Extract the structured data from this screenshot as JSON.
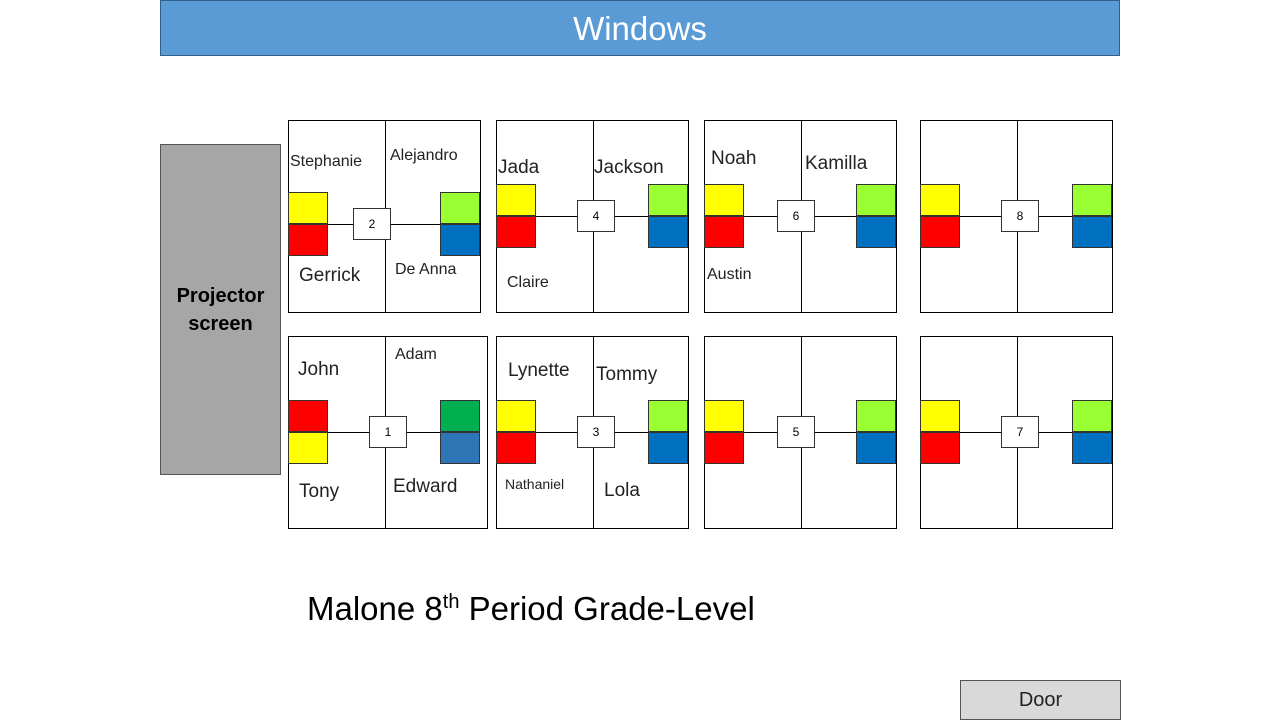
{
  "header": {
    "windows_label": "Windows"
  },
  "projector": {
    "label": "Projector\nscreen"
  },
  "door": {
    "label": "Door"
  },
  "title": {
    "prefix": "Malone 8",
    "superscript": "th",
    "suffix": " Period Grade-Level"
  },
  "colors": {
    "yellow": "#ffff00",
    "red": "#ff0000",
    "light_green": "#99ff33",
    "blue": "#0070c0",
    "green": "#00b050",
    "steel_blue": "#2e75b6"
  },
  "tables": [
    {
      "number": "2",
      "names": [
        "Stephanie",
        "Alejandro",
        "Gerrick",
        "De Anna"
      ]
    },
    {
      "number": "4",
      "names": [
        "Jada",
        "Jackson",
        "Claire"
      ]
    },
    {
      "number": "6",
      "names": [
        "Noah",
        "Kamilla",
        "Austin"
      ]
    },
    {
      "number": "8",
      "names": []
    },
    {
      "number": "1",
      "names": [
        "John",
        "Adam",
        "Tony",
        "Edward"
      ]
    },
    {
      "number": "3",
      "names": [
        "Lynette",
        "Tommy",
        "Nathaniel",
        "Lola"
      ]
    },
    {
      "number": "5",
      "names": []
    },
    {
      "number": "7",
      "names": []
    }
  ]
}
